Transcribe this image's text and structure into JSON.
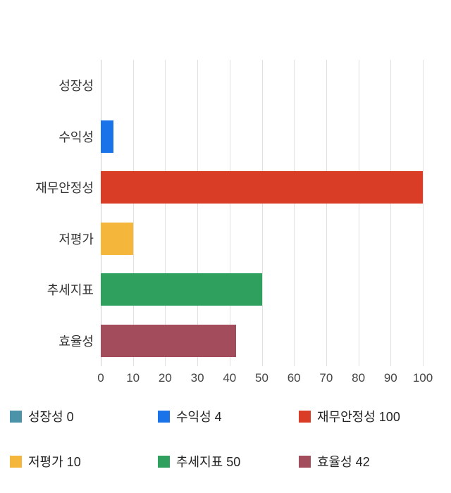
{
  "chart_data": {
    "type": "bar",
    "orientation": "horizontal",
    "title": "",
    "xlabel": "",
    "ylabel": "",
    "categories": [
      "성장성",
      "수익성",
      "재무안정성",
      "저평가",
      "추세지표",
      "효율성"
    ],
    "values": [
      0,
      4,
      100,
      10,
      50,
      42
    ],
    "colors": [
      "#4a93a8",
      "#1a73e8",
      "#d93d26",
      "#f5b63c",
      "#30a05e",
      "#a34d5c"
    ],
    "xlim": [
      0,
      100
    ],
    "xticks": [
      0,
      10,
      20,
      30,
      40,
      50,
      60,
      70,
      80,
      90,
      100
    ],
    "grid": "vertical",
    "legend_position": "bottom",
    "legend": [
      {
        "label": "성장성 0",
        "color": "#4a93a8"
      },
      {
        "label": "수익성 4",
        "color": "#1a73e8"
      },
      {
        "label": "재무안정성 100",
        "color": "#d93d26"
      },
      {
        "label": "저평가 10",
        "color": "#f5b63c"
      },
      {
        "label": "추세지표 50",
        "color": "#30a05e"
      },
      {
        "label": "효율성 42",
        "color": "#a34d5c"
      }
    ]
  }
}
